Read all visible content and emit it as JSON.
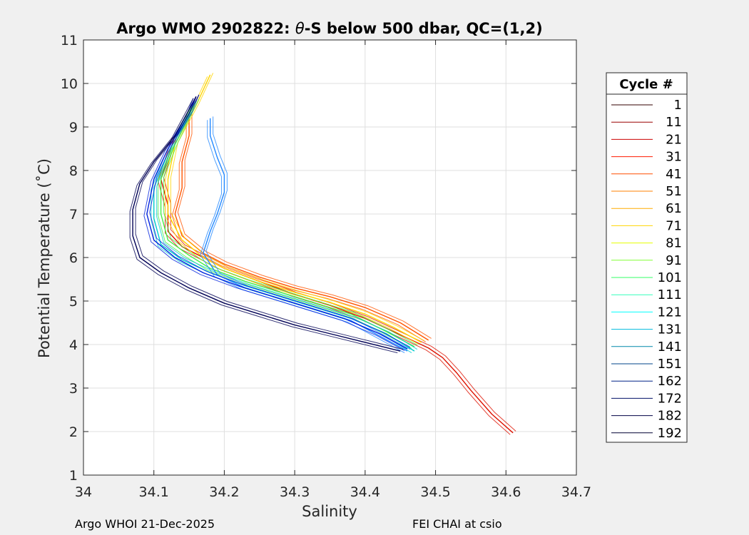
{
  "chart_data": {
    "type": "line",
    "title_prefix": "Argo WMO 2902822: ",
    "title_theta": "θ",
    "title_suffix": "-S below 500 dbar,  QC=(1,2)",
    "xlabel": "Salinity",
    "ylabel": "Potential Temperature (˚C)",
    "xlim": [
      34,
      34.7
    ],
    "ylim": [
      1,
      11
    ],
    "xticks": [
      34,
      34.1,
      34.2,
      34.3,
      34.4,
      34.5,
      34.6,
      34.7
    ],
    "xtick_labels": [
      "34",
      "34.1",
      "34.2",
      "34.3",
      "34.4",
      "34.5",
      "34.6",
      "34.7"
    ],
    "yticks": [
      1,
      2,
      3,
      4,
      5,
      6,
      7,
      8,
      9,
      10,
      11
    ],
    "ytick_labels": [
      "1",
      "2",
      "3",
      "4",
      "5",
      "6",
      "7",
      "8",
      "9",
      "10",
      "11"
    ],
    "grid": true,
    "legend": {
      "title": "Cycle #",
      "placement": "outside-right",
      "entries": [
        {
          "label": "1",
          "color": "#330000"
        },
        {
          "label": "11",
          "color": "#990000"
        },
        {
          "label": "21",
          "color": "#cc0000"
        },
        {
          "label": "31",
          "color": "#ff1a00"
        },
        {
          "label": "41",
          "color": "#ff4d00"
        },
        {
          "label": "51",
          "color": "#ff8000"
        },
        {
          "label": "61",
          "color": "#ffaa00"
        },
        {
          "label": "71",
          "color": "#ffd500"
        },
        {
          "label": "81",
          "color": "#e6ff00"
        },
        {
          "label": "91",
          "color": "#80ff33"
        },
        {
          "label": "101",
          "color": "#33ff66"
        },
        {
          "label": "111",
          "color": "#33ffbb"
        },
        {
          "label": "121",
          "color": "#00ffff"
        },
        {
          "label": "131",
          "color": "#00bbdd"
        },
        {
          "label": "141",
          "color": "#0088aa"
        },
        {
          "label": "151",
          "color": "#004488"
        },
        {
          "label": "162",
          "color": "#002288"
        },
        {
          "label": "172",
          "color": "#001166"
        },
        {
          "label": "182",
          "color": "#000044"
        },
        {
          "label": "192",
          "color": "#000033"
        }
      ]
    },
    "series": [
      {
        "name": "red-deep",
        "color": "#dd1100",
        "points": [
          [
            34.61,
            1.97
          ],
          [
            34.58,
            2.4
          ],
          [
            34.55,
            2.95
          ],
          [
            34.53,
            3.35
          ],
          [
            34.51,
            3.7
          ],
          [
            34.49,
            3.92
          ],
          [
            34.44,
            4.3
          ],
          [
            34.4,
            4.6
          ],
          [
            34.35,
            4.9
          ],
          [
            34.3,
            5.15
          ],
          [
            34.25,
            5.45
          ],
          [
            34.2,
            5.75
          ],
          [
            34.17,
            6.0
          ],
          [
            34.14,
            6.25
          ],
          [
            34.12,
            6.6
          ],
          [
            34.12,
            7.2
          ],
          [
            34.11,
            7.8
          ],
          [
            34.12,
            8.3
          ],
          [
            34.13,
            8.8
          ]
        ]
      },
      {
        "name": "orange",
        "color": "#ff5500",
        "points": [
          [
            34.49,
            4.1
          ],
          [
            34.45,
            4.5
          ],
          [
            34.4,
            4.85
          ],
          [
            34.35,
            5.1
          ],
          [
            34.3,
            5.3
          ],
          [
            34.25,
            5.55
          ],
          [
            34.2,
            5.85
          ],
          [
            34.17,
            6.1
          ],
          [
            34.14,
            6.5
          ],
          [
            34.13,
            7.0
          ],
          [
            34.14,
            7.6
          ],
          [
            34.14,
            8.2
          ],
          [
            34.15,
            8.8
          ],
          [
            34.15,
            9.3
          ]
        ]
      },
      {
        "name": "yellow",
        "color": "#ffd500",
        "points": [
          [
            34.48,
            4.05
          ],
          [
            34.44,
            4.4
          ],
          [
            34.4,
            4.7
          ],
          [
            34.35,
            4.97
          ],
          [
            34.3,
            5.2
          ],
          [
            34.25,
            5.45
          ],
          [
            34.2,
            5.75
          ],
          [
            34.17,
            6.0
          ],
          [
            34.14,
            6.4
          ],
          [
            34.12,
            7.0
          ],
          [
            34.12,
            7.8
          ],
          [
            34.13,
            8.6
          ],
          [
            34.16,
            9.5
          ],
          [
            34.18,
            10.2
          ]
        ]
      },
      {
        "name": "green",
        "color": "#44ee44",
        "points": [
          [
            34.47,
            3.95
          ],
          [
            34.43,
            4.3
          ],
          [
            34.38,
            4.7
          ],
          [
            34.33,
            4.95
          ],
          [
            34.28,
            5.2
          ],
          [
            34.23,
            5.45
          ],
          [
            34.18,
            5.75
          ],
          [
            34.15,
            6.05
          ],
          [
            34.12,
            6.4
          ],
          [
            34.11,
            7.0
          ],
          [
            34.11,
            7.8
          ],
          [
            34.13,
            8.6
          ],
          [
            34.16,
            9.6
          ]
        ]
      },
      {
        "name": "cyan",
        "color": "#00cccc",
        "points": [
          [
            34.47,
            3.85
          ],
          [
            34.43,
            4.25
          ],
          [
            34.38,
            4.6
          ],
          [
            34.33,
            4.85
          ],
          [
            34.28,
            5.1
          ],
          [
            34.23,
            5.35
          ],
          [
            34.18,
            5.65
          ],
          [
            34.14,
            5.95
          ],
          [
            34.11,
            6.3
          ],
          [
            34.1,
            6.9
          ],
          [
            34.1,
            7.6
          ],
          [
            34.12,
            8.4
          ],
          [
            34.15,
            9.3
          ]
        ]
      },
      {
        "name": "light-blue",
        "color": "#2288ff",
        "points": [
          [
            34.46,
            3.85
          ],
          [
            34.42,
            4.2
          ],
          [
            34.38,
            4.55
          ],
          [
            34.33,
            4.8
          ],
          [
            34.28,
            5.05
          ],
          [
            34.23,
            5.3
          ],
          [
            34.19,
            5.6
          ],
          [
            34.17,
            6.1
          ],
          [
            34.18,
            6.6
          ],
          [
            34.19,
            7.0
          ],
          [
            34.2,
            7.5
          ],
          [
            34.2,
            7.9
          ],
          [
            34.19,
            8.3
          ],
          [
            34.18,
            8.8
          ],
          [
            34.18,
            9.2
          ]
        ]
      },
      {
        "name": "blue",
        "color": "#0022dd",
        "points": [
          [
            34.46,
            3.9
          ],
          [
            34.42,
            4.25
          ],
          [
            34.37,
            4.6
          ],
          [
            34.32,
            4.85
          ],
          [
            34.27,
            5.1
          ],
          [
            34.22,
            5.35
          ],
          [
            34.17,
            5.65
          ],
          [
            34.13,
            6.0
          ],
          [
            34.1,
            6.4
          ],
          [
            34.09,
            7.0
          ],
          [
            34.1,
            7.8
          ],
          [
            34.12,
            8.5
          ],
          [
            34.15,
            9.3
          ],
          [
            34.16,
            9.7
          ]
        ]
      },
      {
        "name": "navy",
        "color": "#000055",
        "points": [
          [
            34.45,
            3.85
          ],
          [
            34.4,
            4.05
          ],
          [
            34.35,
            4.25
          ],
          [
            34.3,
            4.45
          ],
          [
            34.25,
            4.7
          ],
          [
            34.2,
            4.95
          ],
          [
            34.15,
            5.3
          ],
          [
            34.11,
            5.65
          ],
          [
            34.08,
            6.0
          ],
          [
            34.07,
            6.5
          ],
          [
            34.07,
            7.1
          ],
          [
            34.08,
            7.7
          ],
          [
            34.1,
            8.2
          ],
          [
            34.13,
            8.8
          ],
          [
            34.16,
            9.7
          ]
        ]
      }
    ]
  },
  "footer": {
    "left": "Argo WHOI 21-Dec-2025",
    "right": "FEI CHAI at csio"
  }
}
